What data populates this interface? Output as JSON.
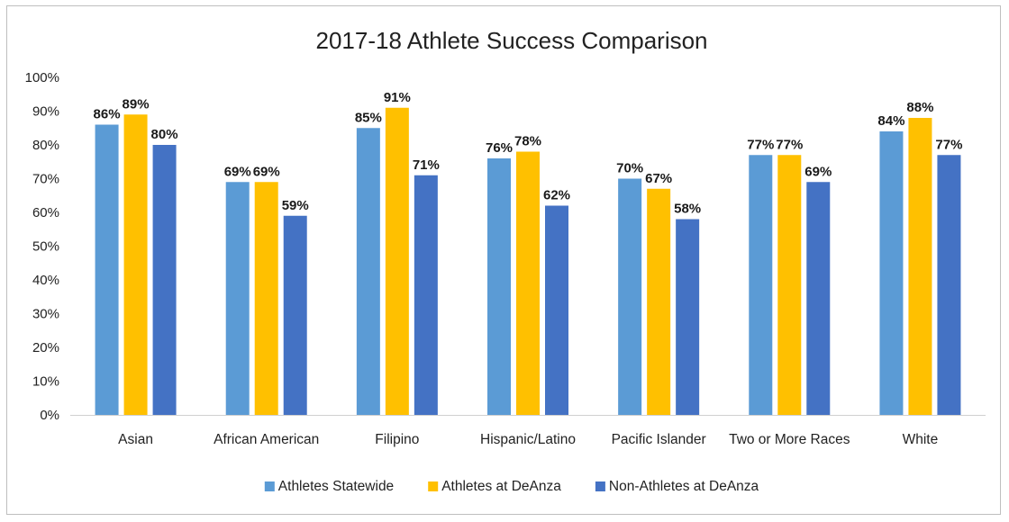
{
  "chart_data": {
    "type": "bar",
    "title": "2017-18 Athlete Success Comparison",
    "categories": [
      "Asian",
      "African American",
      "Filipino",
      "Hispanic/Latino",
      "Pacific Islander",
      "Two or More Races",
      "White"
    ],
    "series": [
      {
        "name": "Athletes Statewide",
        "color": "#5b9bd5",
        "values": [
          86,
          69,
          85,
          76,
          70,
          77,
          84
        ]
      },
      {
        "name": "Athletes at DeAnza",
        "color": "#ffc000",
        "values": [
          89,
          69,
          91,
          78,
          67,
          77,
          88
        ]
      },
      {
        "name": "Non-Athletes at DeAnza",
        "color": "#4472c4",
        "values": [
          80,
          59,
          71,
          62,
          58,
          69,
          77
        ]
      }
    ],
    "ylim": [
      0,
      100
    ],
    "yticks": [
      "0%",
      "10%",
      "20%",
      "30%",
      "40%",
      "50%",
      "60%",
      "70%",
      "80%",
      "90%",
      "100%"
    ],
    "value_suffix": "%",
    "grid": false,
    "legend_position": "bottom"
  }
}
